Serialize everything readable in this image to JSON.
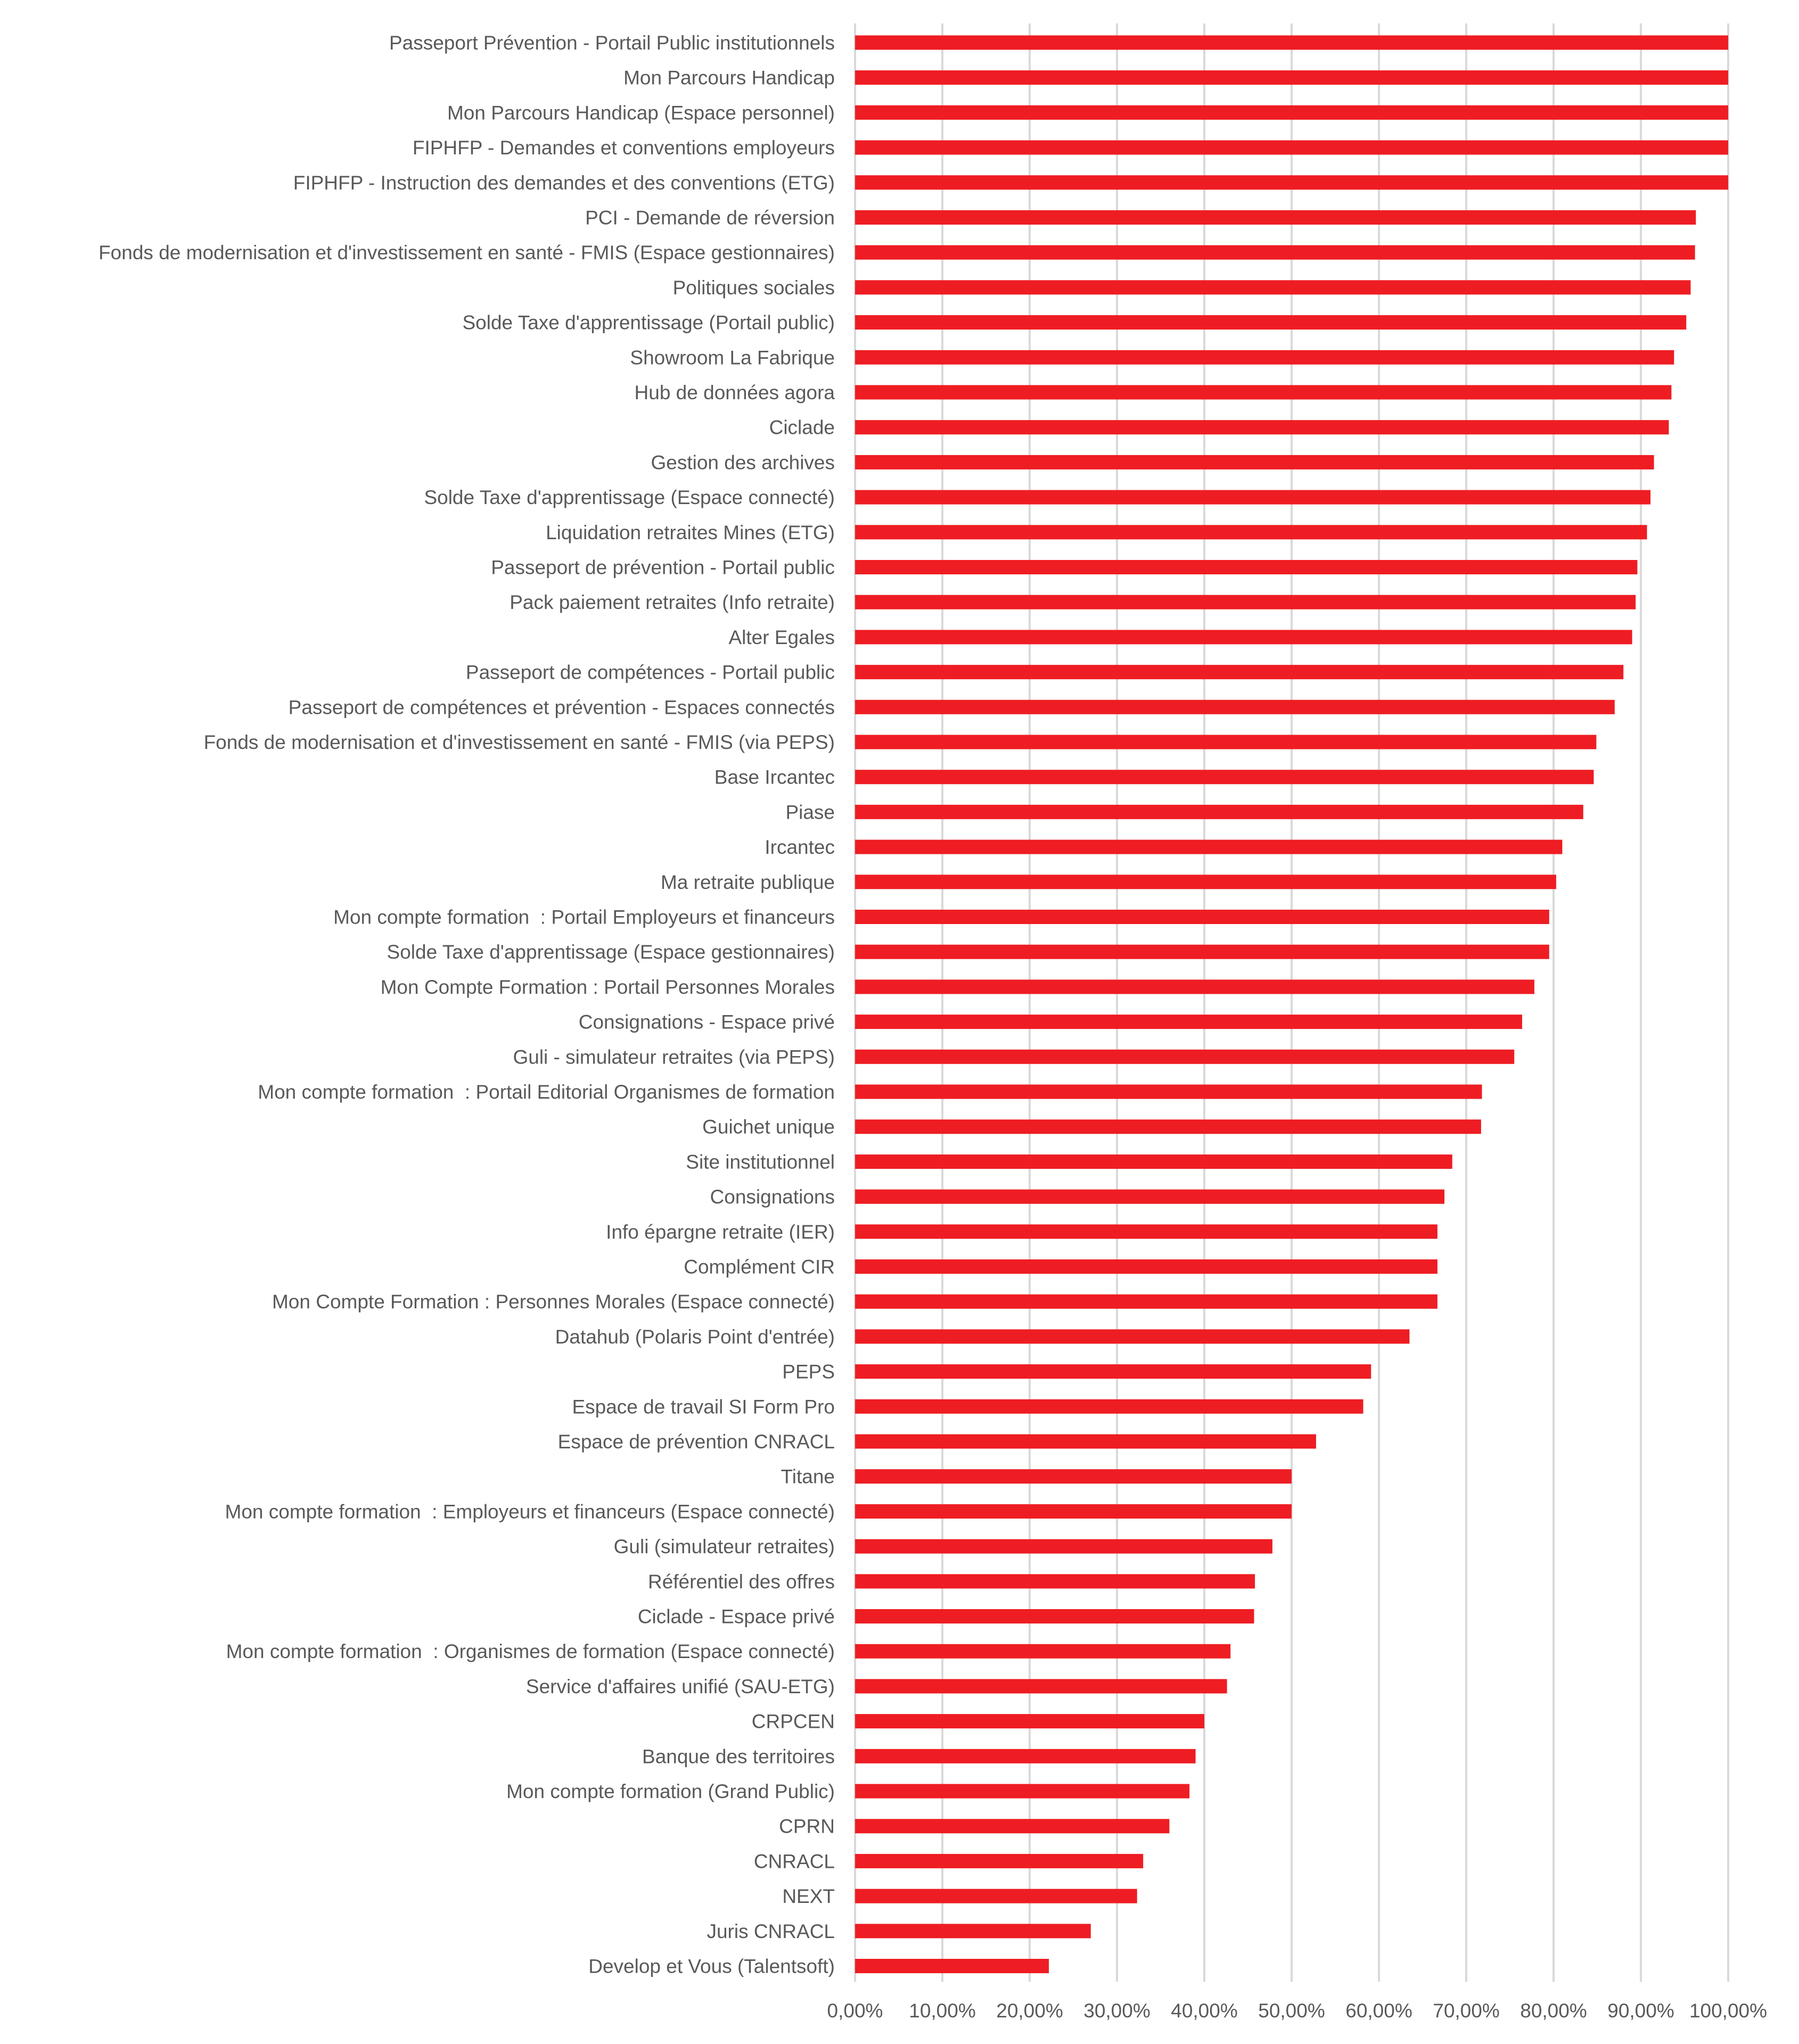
{
  "chart_data": {
    "type": "bar",
    "orientation": "horizontal",
    "title": "",
    "xlabel": "",
    "ylabel": "",
    "xlim": [
      0,
      100
    ],
    "x_ticks": [
      "0,00%",
      "10,00%",
      "20,00%",
      "30,00%",
      "40,00%",
      "50,00%",
      "60,00%",
      "70,00%",
      "80,00%",
      "90,00%",
      "100,00%"
    ],
    "grid": "vertical",
    "legend": "none",
    "bar_color": "#EE1D23",
    "categories": [
      "Passeport Prévention - Portail Public institutionnels",
      "Mon Parcours Handicap",
      "Mon Parcours Handicap (Espace personnel)",
      "FIPHFP - Demandes et conventions employeurs",
      "FIPHFP - Instruction des demandes et des conventions (ETG)",
      "PCI - Demande de réversion",
      "Fonds de modernisation et d'investissement en santé - FMIS (Espace gestionnaires)",
      "Politiques sociales",
      "Solde Taxe d'apprentissage (Portail public)",
      "Showroom La Fabrique",
      "Hub de données agora",
      "Ciclade",
      "Gestion des archives",
      "Solde Taxe d'apprentissage (Espace connecté)",
      "Liquidation retraites Mines (ETG)",
      "Passeport de prévention - Portail public",
      "Pack paiement retraites (Info retraite)",
      "Alter Egales",
      "Passeport de compétences - Portail public",
      "Passeport de compétences et prévention - Espaces connectés",
      "Fonds de modernisation et d'investissement en santé - FMIS (via PEPS)",
      "Base Ircantec",
      "Piase",
      "Ircantec",
      "Ma retraite publique",
      "Mon compte formation  : Portail Employeurs et financeurs",
      "Solde Taxe d'apprentissage (Espace gestionnaires)",
      "Mon Compte Formation : Portail Personnes Morales",
      "Consignations - Espace privé",
      "Guli - simulateur retraites (via PEPS)",
      "Mon compte formation  : Portail Editorial Organismes de formation",
      "Guichet unique",
      "Site institutionnel",
      "Consignations",
      "Info épargne retraite (IER)",
      "Complément CIR",
      "Mon Compte Formation : Personnes Morales (Espace connecté)",
      "Datahub (Polaris Point d'entrée)",
      "PEPS",
      "Espace de travail SI Form Pro",
      "Espace de prévention CNRACL",
      "Titane",
      "Mon compte formation  : Employeurs et financeurs (Espace connecté)",
      "Guli (simulateur retraites)",
      "Référentiel des offres",
      "Ciclade - Espace privé",
      "Mon compte formation  : Organismes de formation (Espace connecté)",
      "Service d'affaires unifié (SAU-ETG)",
      "CRPCEN",
      "Banque des territoires",
      "Mon compte formation (Grand Public)",
      "CPRN",
      "CNRACL",
      "NEXT",
      "Juris CNRACL",
      "Develop et Vous (Talentsoft)"
    ],
    "values": [
      100,
      100,
      100,
      100,
      100,
      96.3,
      96.2,
      95.7,
      95.2,
      93.8,
      93.5,
      93.2,
      91.5,
      91.1,
      90.7,
      89.6,
      89.4,
      89.0,
      88.0,
      87.0,
      84.9,
      84.6,
      83.4,
      81.0,
      80.3,
      79.5,
      79.5,
      77.8,
      76.4,
      75.5,
      71.8,
      71.7,
      68.4,
      67.5,
      66.7,
      66.7,
      66.7,
      63.5,
      59.1,
      58.2,
      52.8,
      50.0,
      50.0,
      47.8,
      45.8,
      45.7,
      43.0,
      42.6,
      40.0,
      39.0,
      38.3,
      36.0,
      33.0,
      32.3,
      27.0,
      22.2
    ]
  }
}
